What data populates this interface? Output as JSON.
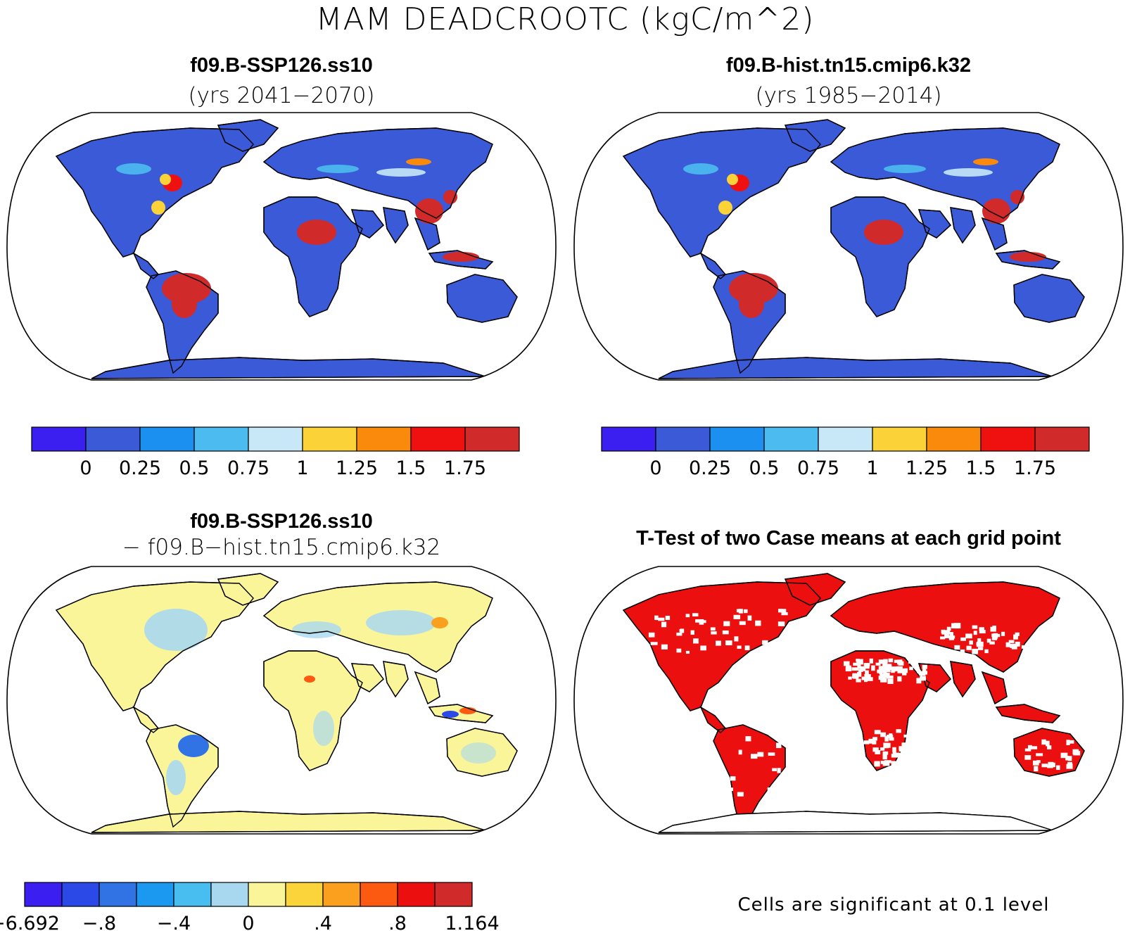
{
  "figure": {
    "title": "MAM DEADCROOTC (kgC/m^2)"
  },
  "panels": {
    "top_left": {
      "title": "f09.B-SSP126.ss10",
      "subtitle": "(yrs 2041−2070)"
    },
    "top_right": {
      "title": "f09.B-hist.tn15.cmip6.k32",
      "subtitle": "(yrs 1985−2014)"
    },
    "bottom_left": {
      "title": "f09.B-SSP126.ss10",
      "subtitle": "− f09.B−hist.tn15.cmip6.k32"
    },
    "bottom_right": {
      "title": "T-Test of two Case means at each grid point",
      "note": "Cells are significant at 0.1 level"
    }
  },
  "colorbars": {
    "absolute": {
      "colors": [
        "#3b1ef0",
        "#3a5ad8",
        "#1b90f0",
        "#4cbcf0",
        "#c8e8f8",
        "#fbd338",
        "#fa8a0c",
        "#ef1010",
        "#d12a2a"
      ],
      "labels": [
        "0",
        "0.25",
        "0.5",
        "0.75",
        "1",
        "1.25",
        "1.5",
        "1.75"
      ]
    },
    "difference": {
      "colors": [
        "#3b1ef0",
        "#2a49e6",
        "#3172e4",
        "#1b98f0",
        "#48bef0",
        "#a8d8f0",
        "#fbf59a",
        "#fbd33a",
        "#fb9f1e",
        "#fb5a10",
        "#ec0f0f",
        "#d12a2a"
      ],
      "labels": [
        "−6.692",
        "−.8",
        "−.4",
        "0",
        ".4",
        ".8",
        "1.164"
      ]
    }
  },
  "map_colors": {
    "land_base_abs": "#3a5ad8",
    "tropical_forest": "#d12a2a",
    "land_base_diff": "#fbf59a",
    "diff_cool": "#a8d8f0",
    "significant": "#ec0f0f",
    "ocean": "#ffffff"
  }
}
